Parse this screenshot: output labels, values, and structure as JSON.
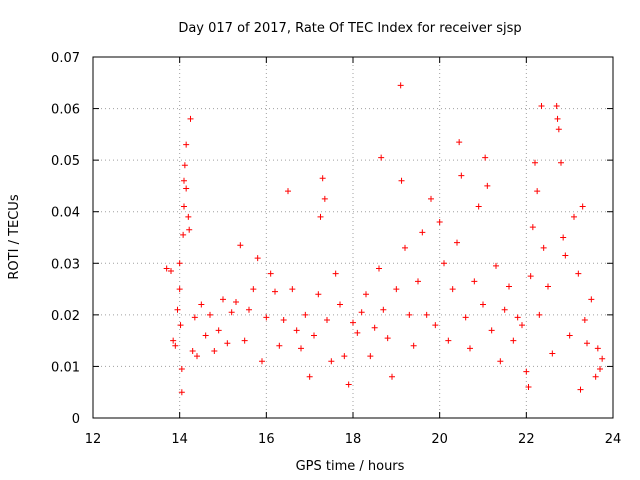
{
  "chart_data": {
    "type": "scatter",
    "title": "Day 017 of 2017, Rate Of TEC Index for receiver sjsp",
    "xlabel": "GPS time / hours",
    "ylabel": "ROTI / TECUs",
    "xlim": [
      12,
      24
    ],
    "ylim": [
      0,
      0.07
    ],
    "xticks": [
      "12",
      "14",
      "16",
      "18",
      "20",
      "22",
      "24"
    ],
    "yticks": [
      "0",
      "0.01",
      "0.02",
      "0.03",
      "0.04",
      "0.05",
      "0.06",
      "0.07"
    ],
    "grid": true,
    "marker": "+",
    "color": "#ff0000",
    "series": [
      {
        "name": "ROTI",
        "points": [
          [
            13.7,
            0.029
          ],
          [
            13.8,
            0.0285
          ],
          [
            13.85,
            0.015
          ],
          [
            13.9,
            0.014
          ],
          [
            13.95,
            0.021
          ],
          [
            14.0,
            0.025
          ],
          [
            14.0,
            0.03
          ],
          [
            14.02,
            0.018
          ],
          [
            14.05,
            0.005
          ],
          [
            14.05,
            0.0095
          ],
          [
            14.08,
            0.0355
          ],
          [
            14.1,
            0.041
          ],
          [
            14.1,
            0.046
          ],
          [
            14.12,
            0.049
          ],
          [
            14.15,
            0.0445
          ],
          [
            14.15,
            0.053
          ],
          [
            14.2,
            0.039
          ],
          [
            14.22,
            0.0365
          ],
          [
            14.25,
            0.058
          ],
          [
            14.3,
            0.013
          ],
          [
            14.35,
            0.0195
          ],
          [
            14.4,
            0.012
          ],
          [
            14.5,
            0.022
          ],
          [
            14.6,
            0.016
          ],
          [
            14.7,
            0.02
          ],
          [
            14.8,
            0.013
          ],
          [
            14.9,
            0.017
          ],
          [
            15.0,
            0.023
          ],
          [
            15.1,
            0.0145
          ],
          [
            15.2,
            0.0205
          ],
          [
            15.3,
            0.0225
          ],
          [
            15.4,
            0.0335
          ],
          [
            15.5,
            0.015
          ],
          [
            15.6,
            0.021
          ],
          [
            15.7,
            0.025
          ],
          [
            15.8,
            0.031
          ],
          [
            15.9,
            0.011
          ],
          [
            16.0,
            0.0195
          ],
          [
            16.1,
            0.028
          ],
          [
            16.2,
            0.0245
          ],
          [
            16.3,
            0.014
          ],
          [
            16.4,
            0.019
          ],
          [
            16.5,
            0.044
          ],
          [
            16.6,
            0.025
          ],
          [
            16.7,
            0.017
          ],
          [
            16.8,
            0.0135
          ],
          [
            16.9,
            0.02
          ],
          [
            17.0,
            0.008
          ],
          [
            17.1,
            0.016
          ],
          [
            17.2,
            0.024
          ],
          [
            17.25,
            0.039
          ],
          [
            17.3,
            0.0465
          ],
          [
            17.35,
            0.0425
          ],
          [
            17.4,
            0.019
          ],
          [
            17.5,
            0.011
          ],
          [
            17.6,
            0.028
          ],
          [
            17.7,
            0.022
          ],
          [
            17.8,
            0.012
          ],
          [
            17.9,
            0.0065
          ],
          [
            18.0,
            0.0185
          ],
          [
            18.1,
            0.0165
          ],
          [
            18.2,
            0.0205
          ],
          [
            18.3,
            0.024
          ],
          [
            18.4,
            0.012
          ],
          [
            18.5,
            0.0175
          ],
          [
            18.6,
            0.029
          ],
          [
            18.65,
            0.0505
          ],
          [
            18.7,
            0.021
          ],
          [
            18.8,
            0.0155
          ],
          [
            18.9,
            0.008
          ],
          [
            19.0,
            0.025
          ],
          [
            19.1,
            0.0645
          ],
          [
            19.12,
            0.046
          ],
          [
            19.2,
            0.033
          ],
          [
            19.3,
            0.02
          ],
          [
            19.4,
            0.014
          ],
          [
            19.5,
            0.0265
          ],
          [
            19.6,
            0.036
          ],
          [
            19.7,
            0.02
          ],
          [
            19.8,
            0.0425
          ],
          [
            19.9,
            0.018
          ],
          [
            20.0,
            0.038
          ],
          [
            20.1,
            0.03
          ],
          [
            20.2,
            0.015
          ],
          [
            20.3,
            0.025
          ],
          [
            20.4,
            0.034
          ],
          [
            20.45,
            0.0535
          ],
          [
            20.5,
            0.047
          ],
          [
            20.6,
            0.0195
          ],
          [
            20.7,
            0.0135
          ],
          [
            20.8,
            0.0265
          ],
          [
            20.9,
            0.041
          ],
          [
            21.0,
            0.022
          ],
          [
            21.05,
            0.0505
          ],
          [
            21.1,
            0.045
          ],
          [
            21.2,
            0.017
          ],
          [
            21.3,
            0.0295
          ],
          [
            21.4,
            0.011
          ],
          [
            21.5,
            0.021
          ],
          [
            21.6,
            0.0255
          ],
          [
            21.7,
            0.015
          ],
          [
            21.8,
            0.0195
          ],
          [
            21.9,
            0.018
          ],
          [
            22.0,
            0.009
          ],
          [
            22.05,
            0.006
          ],
          [
            22.1,
            0.0275
          ],
          [
            22.15,
            0.037
          ],
          [
            22.2,
            0.0495
          ],
          [
            22.25,
            0.044
          ],
          [
            22.3,
            0.02
          ],
          [
            22.35,
            0.0605
          ],
          [
            22.4,
            0.033
          ],
          [
            22.5,
            0.0255
          ],
          [
            22.6,
            0.0125
          ],
          [
            22.7,
            0.0605
          ],
          [
            22.72,
            0.058
          ],
          [
            22.75,
            0.056
          ],
          [
            22.8,
            0.0495
          ],
          [
            22.85,
            0.035
          ],
          [
            22.9,
            0.0315
          ],
          [
            23.0,
            0.016
          ],
          [
            23.1,
            0.039
          ],
          [
            23.2,
            0.028
          ],
          [
            23.25,
            0.0055
          ],
          [
            23.3,
            0.041
          ],
          [
            23.35,
            0.019
          ],
          [
            23.4,
            0.0145
          ],
          [
            23.5,
            0.023
          ],
          [
            23.6,
            0.008
          ],
          [
            23.65,
            0.0135
          ],
          [
            23.7,
            0.0095
          ],
          [
            23.75,
            0.0115
          ]
        ]
      }
    ]
  }
}
